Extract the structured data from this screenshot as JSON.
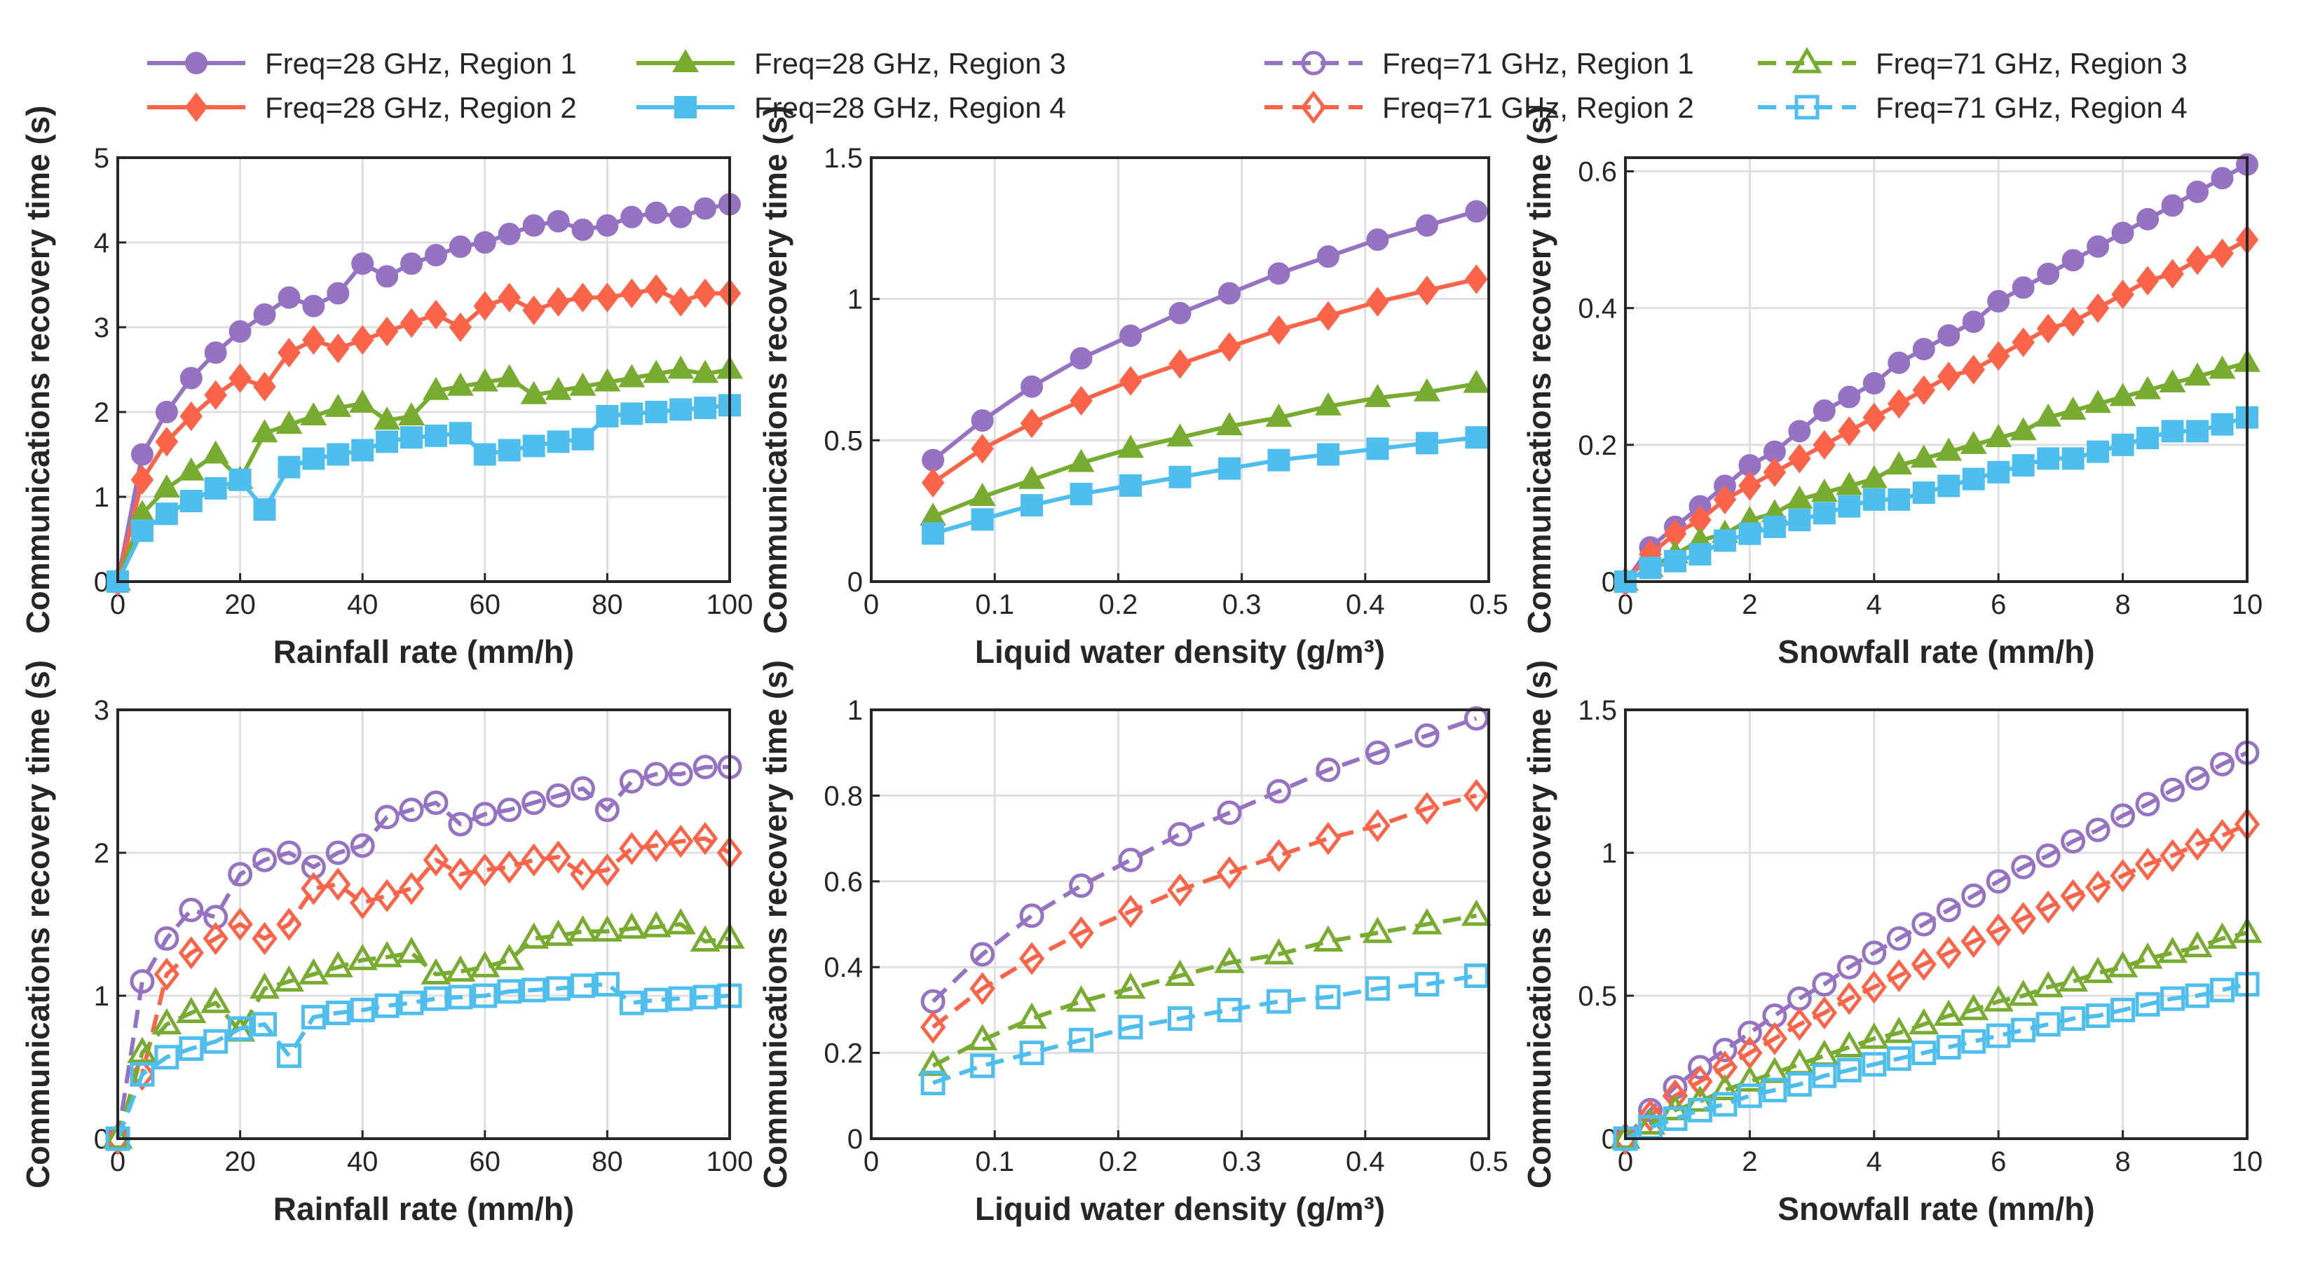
{
  "legend": [
    {
      "label": "Freq=28 GHz, Region 1",
      "region": 1,
      "freq": 28
    },
    {
      "label": "Freq=28 GHz, Region 2",
      "region": 2,
      "freq": 28
    },
    {
      "label": "Freq=28 GHz, Region 3",
      "region": 3,
      "freq": 28
    },
    {
      "label": "Freq=28 GHz, Region 4",
      "region": 4,
      "freq": 28
    },
    {
      "label": "Freq=71 GHz, Region 1",
      "region": 1,
      "freq": 71
    },
    {
      "label": "Freq=71 GHz, Region 2",
      "region": 2,
      "freq": 71
    },
    {
      "label": "Freq=71 GHz, Region 3",
      "region": 3,
      "freq": 71
    },
    {
      "label": "Freq=71 GHz, Region 4",
      "region": 4,
      "freq": 71
    }
  ],
  "colors": {
    "region1": "#9673c2",
    "region2": "#fc6449",
    "region3": "#77ac30",
    "region4": "#4dbeee"
  },
  "markers": {
    "region1": "circle",
    "region2": "diamond",
    "region3": "triangle",
    "region4": "square"
  },
  "chart_data": [
    {
      "type": "line",
      "id": "rain-28",
      "freq": 28,
      "xlabel": "Rainfall rate (mm/h)",
      "ylabel": "Communications recovery time (s)",
      "xlim": [
        0,
        100
      ],
      "ylim": [
        0,
        5
      ],
      "xticks": [
        0,
        20,
        40,
        60,
        80,
        100
      ],
      "yticks": [
        0,
        1,
        2,
        3,
        4,
        5
      ],
      "grid": true,
      "x": [
        0,
        4,
        8,
        12,
        16,
        20,
        24,
        28,
        32,
        36,
        40,
        44,
        48,
        52,
        56,
        60,
        64,
        68,
        72,
        76,
        80,
        84,
        88,
        92,
        96,
        100
      ],
      "series": [
        {
          "name": "Freq=28 GHz, Region 1",
          "values": [
            0,
            1.5,
            2.0,
            2.4,
            2.7,
            2.95,
            3.15,
            3.35,
            3.25,
            3.4,
            3.75,
            3.6,
            3.75,
            3.85,
            3.95,
            4.0,
            4.1,
            4.2,
            4.25,
            4.15,
            4.2,
            4.3,
            4.35,
            4.3,
            4.4,
            4.45
          ]
        },
        {
          "name": "Freq=28 GHz, Region 2",
          "values": [
            0,
            1.2,
            1.65,
            1.95,
            2.2,
            2.4,
            2.3,
            2.7,
            2.85,
            2.75,
            2.85,
            2.95,
            3.05,
            3.15,
            3.0,
            3.25,
            3.35,
            3.2,
            3.3,
            3.35,
            3.35,
            3.4,
            3.45,
            3.3,
            3.4,
            3.4
          ]
        },
        {
          "name": "Freq=28 GHz, Region 3",
          "values": [
            0,
            0.8,
            1.1,
            1.3,
            1.5,
            1.2,
            1.75,
            1.85,
            1.95,
            2.05,
            2.1,
            1.9,
            1.95,
            2.25,
            2.3,
            2.35,
            2.4,
            2.2,
            2.25,
            2.3,
            2.35,
            2.4,
            2.45,
            2.5,
            2.45,
            2.5
          ]
        },
        {
          "name": "Freq=28 GHz, Region 4",
          "values": [
            0,
            0.6,
            0.8,
            0.95,
            1.1,
            1.2,
            0.85,
            1.35,
            1.45,
            1.5,
            1.55,
            1.65,
            1.7,
            1.72,
            1.75,
            1.5,
            1.55,
            1.6,
            1.65,
            1.68,
            1.95,
            1.98,
            2.0,
            2.03,
            2.05,
            2.08
          ]
        }
      ]
    },
    {
      "type": "line",
      "id": "lwd-28",
      "freq": 28,
      "xlabel": "Liquid water density (g/m³)",
      "ylabel": "Communications recovery time (s)",
      "xlim": [
        0,
        0.5
      ],
      "ylim": [
        0,
        1.5
      ],
      "xticks": [
        0,
        0.1,
        0.2,
        0.3,
        0.4,
        0.5
      ],
      "yticks": [
        0,
        0.5,
        1,
        1.5
      ],
      "grid": true,
      "x": [
        0.05,
        0.09,
        0.13,
        0.17,
        0.21,
        0.25,
        0.29,
        0.33,
        0.37,
        0.41,
        0.45,
        0.49
      ],
      "series": [
        {
          "name": "Freq=28 GHz, Region 1",
          "values": [
            0.43,
            0.57,
            0.69,
            0.79,
            0.87,
            0.95,
            1.02,
            1.09,
            1.15,
            1.21,
            1.26,
            1.31
          ]
        },
        {
          "name": "Freq=28 GHz, Region 2",
          "values": [
            0.35,
            0.47,
            0.56,
            0.64,
            0.71,
            0.77,
            0.83,
            0.89,
            0.94,
            0.99,
            1.03,
            1.07
          ]
        },
        {
          "name": "Freq=28 GHz, Region 3",
          "values": [
            0.23,
            0.3,
            0.36,
            0.42,
            0.47,
            0.51,
            0.55,
            0.58,
            0.62,
            0.65,
            0.67,
            0.7
          ]
        },
        {
          "name": "Freq=28 GHz, Region 4",
          "values": [
            0.17,
            0.22,
            0.27,
            0.31,
            0.34,
            0.37,
            0.4,
            0.43,
            0.45,
            0.47,
            0.49,
            0.51
          ]
        }
      ]
    },
    {
      "type": "line",
      "id": "snow-28",
      "freq": 28,
      "xlabel": "Snowfall rate (mm/h)",
      "ylabel": "Communications recovery time (s)",
      "xlim": [
        0,
        10
      ],
      "ylim": [
        0,
        0.62
      ],
      "xticks": [
        0,
        2,
        4,
        6,
        8,
        10
      ],
      "yticks": [
        0,
        0.2,
        0.4,
        0.6
      ],
      "grid": true,
      "x": [
        0,
        0.4,
        0.8,
        1.2,
        1.6,
        2,
        2.4,
        2.8,
        3.2,
        3.6,
        4,
        4.4,
        4.8,
        5.2,
        5.6,
        6,
        6.4,
        6.8,
        7.2,
        7.6,
        8,
        8.4,
        8.8,
        9.2,
        9.6,
        10
      ],
      "series": [
        {
          "name": "Freq=28 GHz, Region 1",
          "values": [
            0,
            0.05,
            0.08,
            0.11,
            0.14,
            0.17,
            0.19,
            0.22,
            0.25,
            0.27,
            0.29,
            0.32,
            0.34,
            0.36,
            0.38,
            0.41,
            0.43,
            0.45,
            0.47,
            0.49,
            0.51,
            0.53,
            0.55,
            0.57,
            0.59,
            0.61
          ]
        },
        {
          "name": "Freq=28 GHz, Region 2",
          "values": [
            0,
            0.04,
            0.07,
            0.09,
            0.12,
            0.14,
            0.16,
            0.18,
            0.2,
            0.22,
            0.24,
            0.26,
            0.28,
            0.3,
            0.31,
            0.33,
            0.35,
            0.37,
            0.38,
            0.4,
            0.42,
            0.44,
            0.45,
            0.47,
            0.48,
            0.5
          ]
        },
        {
          "name": "Freq=28 GHz, Region 3",
          "values": [
            0,
            0.02,
            0.04,
            0.06,
            0.07,
            0.09,
            0.1,
            0.12,
            0.13,
            0.14,
            0.15,
            0.17,
            0.18,
            0.19,
            0.2,
            0.21,
            0.22,
            0.24,
            0.25,
            0.26,
            0.27,
            0.28,
            0.29,
            0.3,
            0.31,
            0.32
          ]
        },
        {
          "name": "Freq=28 GHz, Region 4",
          "values": [
            0,
            0.02,
            0.03,
            0.04,
            0.06,
            0.07,
            0.08,
            0.09,
            0.1,
            0.11,
            0.12,
            0.12,
            0.13,
            0.14,
            0.15,
            0.16,
            0.17,
            0.18,
            0.18,
            0.19,
            0.2,
            0.21,
            0.22,
            0.22,
            0.23,
            0.24
          ]
        }
      ]
    },
    {
      "type": "line",
      "id": "rain-71",
      "freq": 71,
      "xlabel": "Rainfall rate (mm/h)",
      "ylabel": "Communications recovery time (s)",
      "xlim": [
        0,
        100
      ],
      "ylim": [
        0,
        3
      ],
      "xticks": [
        0,
        20,
        40,
        60,
        80,
        100
      ],
      "yticks": [
        0,
        1,
        2,
        3
      ],
      "grid": true,
      "x": [
        0,
        4,
        8,
        12,
        16,
        20,
        24,
        28,
        32,
        36,
        40,
        44,
        48,
        52,
        56,
        60,
        64,
        68,
        72,
        76,
        80,
        84,
        88,
        92,
        96,
        100
      ],
      "series": [
        {
          "name": "Freq=71 GHz, Region 1",
          "values": [
            0,
            1.1,
            1.4,
            1.6,
            1.55,
            1.85,
            1.95,
            2.0,
            1.9,
            2.0,
            2.05,
            2.25,
            2.3,
            2.35,
            2.2,
            2.27,
            2.3,
            2.35,
            2.4,
            2.45,
            2.3,
            2.5,
            2.55,
            2.55,
            2.6,
            2.6
          ]
        },
        {
          "name": "Freq=71 GHz, Region 2",
          "values": [
            0,
            0.45,
            1.15,
            1.3,
            1.4,
            1.5,
            1.4,
            1.5,
            1.75,
            1.78,
            1.65,
            1.7,
            1.75,
            1.95,
            1.85,
            1.88,
            1.9,
            1.95,
            1.97,
            1.85,
            1.88,
            2.03,
            2.05,
            2.08,
            2.1,
            2.0
          ]
        },
        {
          "name": "Freq=71 GHz, Region 3",
          "values": [
            0,
            0.6,
            0.8,
            0.88,
            0.95,
            0.75,
            1.05,
            1.1,
            1.15,
            1.2,
            1.25,
            1.27,
            1.3,
            1.15,
            1.17,
            1.2,
            1.25,
            1.4,
            1.42,
            1.45,
            1.45,
            1.47,
            1.48,
            1.5,
            1.38,
            1.4
          ]
        },
        {
          "name": "Freq=71 GHz, Region 4",
          "values": [
            0,
            0.45,
            0.57,
            0.63,
            0.68,
            0.77,
            0.8,
            0.58,
            0.85,
            0.88,
            0.9,
            0.93,
            0.95,
            0.98,
            0.99,
            1.0,
            1.03,
            1.04,
            1.05,
            1.07,
            1.08,
            0.95,
            0.97,
            0.98,
            0.99,
            1.0
          ]
        }
      ]
    },
    {
      "type": "line",
      "id": "lwd-71",
      "freq": 71,
      "xlabel": "Liquid water density (g/m³)",
      "ylabel": "Communications recovery time (s)",
      "xlim": [
        0,
        0.5
      ],
      "ylim": [
        0,
        1
      ],
      "xticks": [
        0,
        0.1,
        0.2,
        0.3,
        0.4,
        0.5
      ],
      "yticks": [
        0,
        0.2,
        0.4,
        0.6,
        0.8,
        1
      ],
      "grid": true,
      "x": [
        0.05,
        0.09,
        0.13,
        0.17,
        0.21,
        0.25,
        0.29,
        0.33,
        0.37,
        0.41,
        0.45,
        0.49
      ],
      "series": [
        {
          "name": "Freq=71 GHz, Region 1",
          "values": [
            0.32,
            0.43,
            0.52,
            0.59,
            0.65,
            0.71,
            0.76,
            0.81,
            0.86,
            0.9,
            0.94,
            0.98
          ]
        },
        {
          "name": "Freq=71 GHz, Region 2",
          "values": [
            0.26,
            0.35,
            0.42,
            0.48,
            0.53,
            0.58,
            0.62,
            0.66,
            0.7,
            0.73,
            0.77,
            0.8
          ]
        },
        {
          "name": "Freq=71 GHz, Region 3",
          "values": [
            0.17,
            0.23,
            0.28,
            0.32,
            0.35,
            0.38,
            0.41,
            0.43,
            0.46,
            0.48,
            0.5,
            0.52
          ]
        },
        {
          "name": "Freq=71 GHz, Region 4",
          "values": [
            0.13,
            0.17,
            0.2,
            0.23,
            0.26,
            0.28,
            0.3,
            0.32,
            0.33,
            0.35,
            0.36,
            0.38
          ]
        }
      ]
    },
    {
      "type": "line",
      "id": "snow-71",
      "freq": 71,
      "xlabel": "Snowfall rate (mm/h)",
      "ylabel": "Communications recovery time (s)",
      "xlim": [
        0,
        10
      ],
      "ylim": [
        0,
        1.5
      ],
      "xticks": [
        0,
        2,
        4,
        6,
        8,
        10
      ],
      "yticks": [
        0,
        0.5,
        1,
        1.5
      ],
      "grid": true,
      "x": [
        0,
        0.4,
        0.8,
        1.2,
        1.6,
        2,
        2.4,
        2.8,
        3.2,
        3.6,
        4,
        4.4,
        4.8,
        5.2,
        5.6,
        6,
        6.4,
        6.8,
        7.2,
        7.6,
        8,
        8.4,
        8.8,
        9.2,
        9.6,
        10
      ],
      "series": [
        {
          "name": "Freq=71 GHz, Region 1",
          "values": [
            0,
            0.1,
            0.18,
            0.25,
            0.31,
            0.37,
            0.43,
            0.49,
            0.54,
            0.6,
            0.65,
            0.7,
            0.75,
            0.8,
            0.85,
            0.9,
            0.95,
            0.99,
            1.04,
            1.08,
            1.13,
            1.17,
            1.22,
            1.26,
            1.31,
            1.35
          ]
        },
        {
          "name": "Freq=71 GHz, Region 2",
          "values": [
            0,
            0.08,
            0.15,
            0.2,
            0.25,
            0.3,
            0.35,
            0.4,
            0.44,
            0.49,
            0.53,
            0.57,
            0.61,
            0.65,
            0.69,
            0.73,
            0.77,
            0.81,
            0.85,
            0.88,
            0.92,
            0.96,
            0.99,
            1.03,
            1.06,
            1.1
          ]
        },
        {
          "name": "Freq=71 GHz, Region 3",
          "values": [
            0,
            0.05,
            0.1,
            0.13,
            0.17,
            0.2,
            0.23,
            0.26,
            0.29,
            0.32,
            0.35,
            0.37,
            0.4,
            0.43,
            0.45,
            0.48,
            0.5,
            0.53,
            0.55,
            0.58,
            0.6,
            0.63,
            0.65,
            0.67,
            0.7,
            0.72
          ]
        },
        {
          "name": "Freq=71 GHz, Region 4",
          "values": [
            0,
            0.04,
            0.07,
            0.1,
            0.12,
            0.15,
            0.17,
            0.19,
            0.22,
            0.24,
            0.26,
            0.28,
            0.3,
            0.32,
            0.34,
            0.36,
            0.38,
            0.4,
            0.42,
            0.43,
            0.45,
            0.47,
            0.49,
            0.5,
            0.52,
            0.54
          ]
        }
      ]
    }
  ]
}
